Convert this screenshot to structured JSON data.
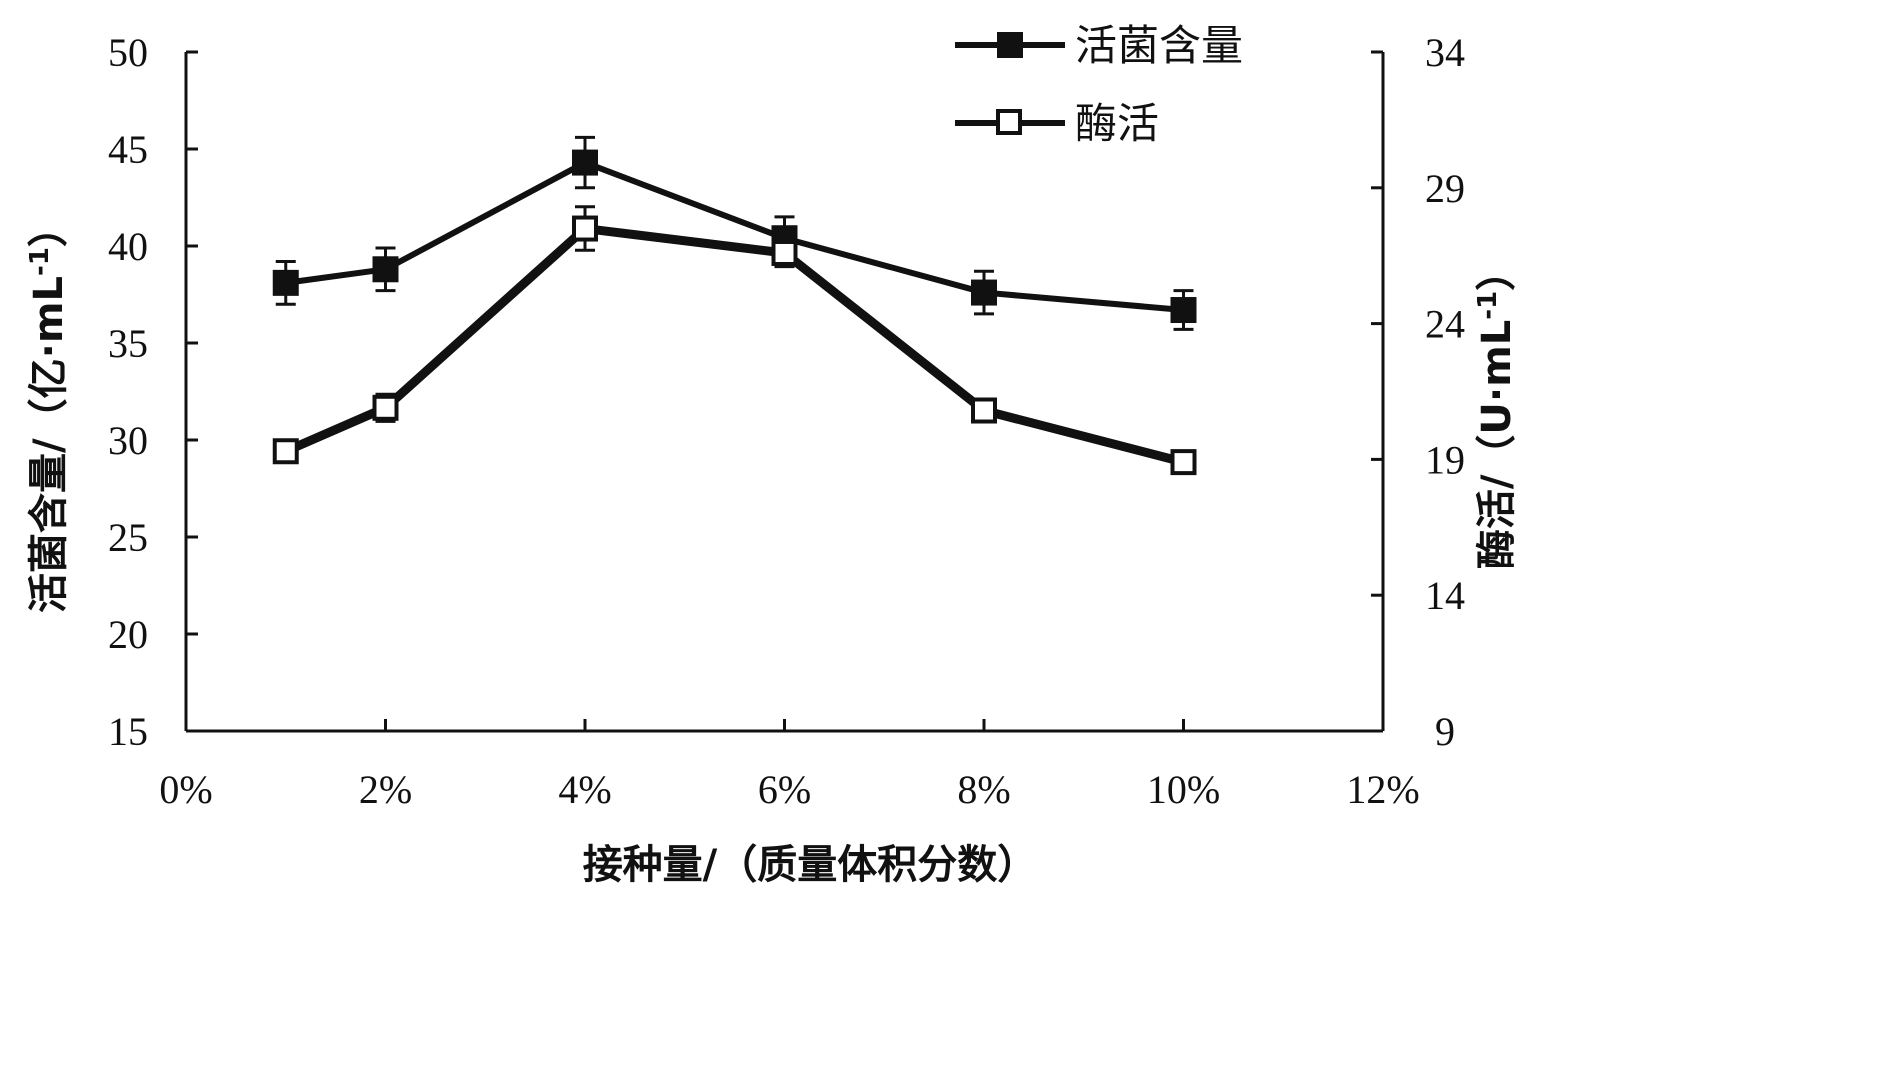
{
  "chart_data": {
    "type": "line",
    "xlabel": "接种量/（质量体积分数）",
    "ylabel_left": "活菌含量/（亿·mL",
    "ylabel_left_sup": "-1",
    "ylabel_left_end": "）",
    "ylabel_right": "酶活/（U·mL",
    "ylabel_right_sup": "-1",
    "ylabel_right_end": "）",
    "xlim": [
      0,
      12
    ],
    "ylim_left": [
      15,
      50
    ],
    "ylim_right": [
      9,
      34
    ],
    "x_ticks": [
      0,
      2,
      4,
      6,
      8,
      10,
      12
    ],
    "x_tick_labels": [
      "0%",
      "2%",
      "4%",
      "6%",
      "8%",
      "10%",
      "12%"
    ],
    "y_left_ticks": [
      15,
      20,
      25,
      30,
      35,
      40,
      45,
      50
    ],
    "y_left_tick_labels": [
      "15",
      "20",
      "25",
      "30",
      "35",
      "40",
      "45",
      "50"
    ],
    "y_right_ticks": [
      9,
      14,
      19,
      24,
      29,
      34
    ],
    "y_right_tick_labels": [
      "9",
      "14",
      "19",
      "24",
      "29",
      "34"
    ],
    "grid": false,
    "legend_position": "top-right",
    "series": [
      {
        "name": "活菌含量",
        "axis": "left",
        "marker": "filled-square",
        "x": [
          1,
          2,
          4,
          6,
          8,
          10
        ],
        "y": [
          38.1,
          38.8,
          44.3,
          40.4,
          37.6,
          36.7
        ],
        "error": [
          1.1,
          1.1,
          1.3,
          1.1,
          1.1,
          1.0
        ]
      },
      {
        "name": "酶活",
        "axis": "right",
        "marker": "open-square",
        "x": [
          1,
          2,
          4,
          6,
          8,
          10
        ],
        "y": [
          19.3,
          20.9,
          27.5,
          26.6,
          20.8,
          18.9
        ],
        "error": [
          0.3,
          0.5,
          0.8,
          0.5,
          0.4,
          0.3
        ]
      }
    ]
  }
}
